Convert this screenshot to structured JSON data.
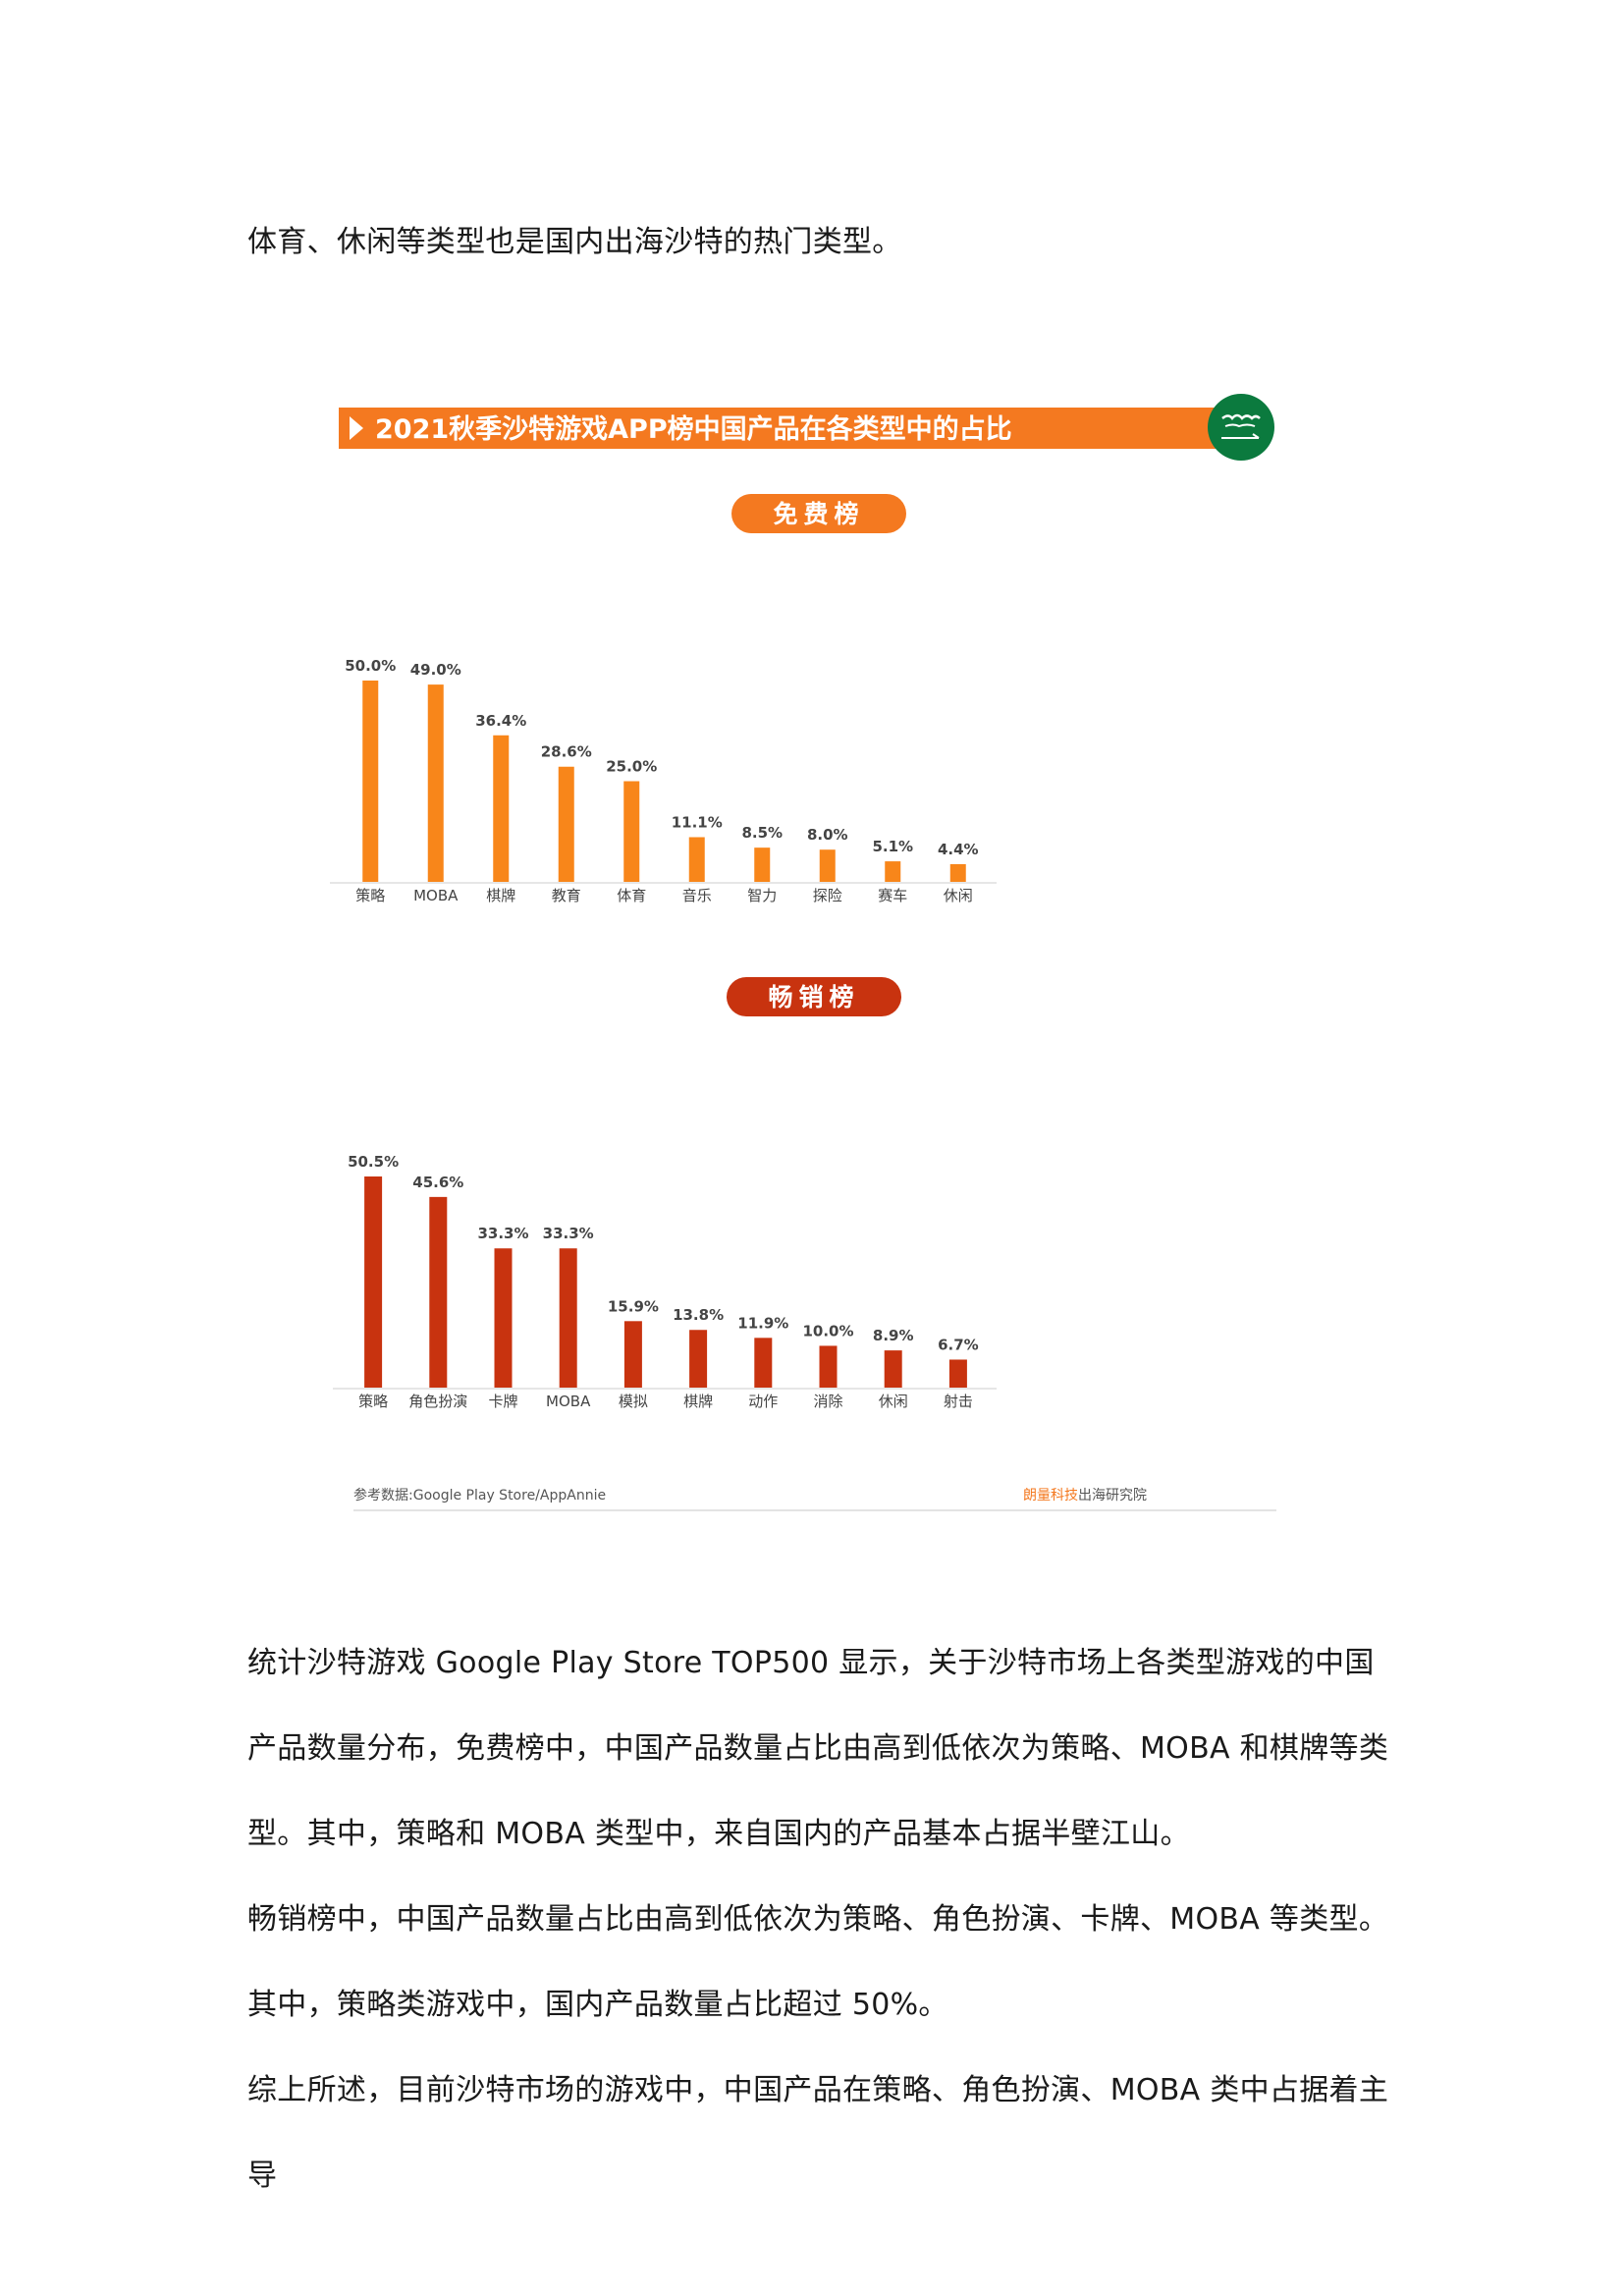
{
  "intro_text": "体育、休闲等类型也是国内出海沙特的热门类型。",
  "figure": {
    "title": "2021秋季沙特游戏APP榜中国产品在各类型中的占比",
    "flag": "saudi-flag",
    "colors": {
      "title_bar": "#f47920",
      "free_bars": "#f8861a",
      "grossing_bars": "#c8330f",
      "free_badge": "#f47920",
      "grossing_badge": "#c8330f"
    },
    "source": "参考数据:Google Play Store/AppAnnie",
    "credit_brand": "朗量科技",
    "credit_rest": "出海研究院"
  },
  "chart_data": [
    {
      "type": "bar",
      "title": "免费榜",
      "categories": [
        "策略",
        "MOBA",
        "棋牌",
        "教育",
        "体育",
        "音乐",
        "智力",
        "探险",
        "赛车",
        "休闲"
      ],
      "values": [
        50.0,
        49.0,
        36.4,
        28.6,
        25.0,
        11.1,
        8.5,
        8.0,
        5.1,
        4.4
      ],
      "labels": [
        "50.0%",
        "49.0%",
        "36.4%",
        "28.6%",
        "25.0%",
        "11.1%",
        "8.5%",
        "8.0%",
        "5.1%",
        "4.4%"
      ],
      "ylim": [
        0,
        50
      ],
      "grid": false
    },
    {
      "type": "bar",
      "title": "畅销榜",
      "categories": [
        "策略",
        "角色扮演",
        "卡牌",
        "MOBA",
        "模拟",
        "棋牌",
        "动作",
        "消除",
        "休闲",
        "射击"
      ],
      "values": [
        50.5,
        45.6,
        33.3,
        33.3,
        15.9,
        13.8,
        11.9,
        10.0,
        8.9,
        6.7
      ],
      "labels": [
        "50.5%",
        "45.6%",
        "33.3%",
        "33.3%",
        "15.9%",
        "13.8%",
        "11.9%",
        "10.0%",
        "8.9%",
        "6.7%"
      ],
      "ylim": [
        0,
        50.5
      ],
      "grid": false
    }
  ],
  "body_text": "统计沙特游戏 Google Play Store TOP500 显示，关于沙特市场上各类型游戏的中国产品数量分布，免费榜中，中国产品数量占比由高到低依次为策略、MOBA 和棋牌等类型。其中，策略和 MOBA 类型中，来自国内的产品基本占据半壁江山。",
  "body_text_2": "畅销榜中，中国产品数量占比由高到低依次为策略、角色扮演、卡牌、MOBA 等类型。其中，策略类游戏中，国内产品数量占比超过 50%。",
  "body_text_3": "综上所述，目前沙特市场的游戏中，中国产品在策略、角色扮演、MOBA 类中占据着主导"
}
